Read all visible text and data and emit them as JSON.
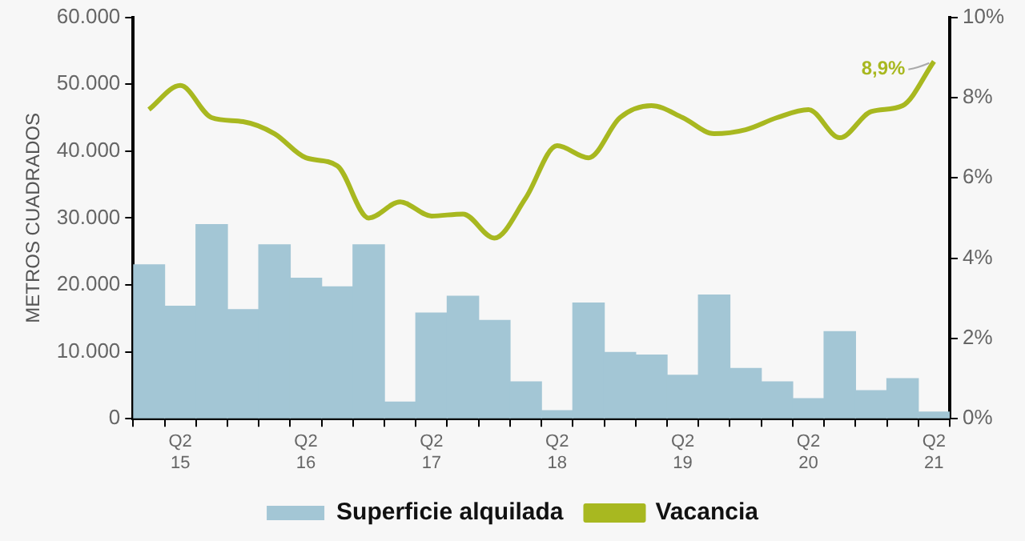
{
  "chart_data": {
    "type": "bar",
    "ylabel": "METROS CUADRADOS",
    "categories": [
      null,
      "Q2\n15",
      null,
      null,
      null,
      "Q2\n16",
      null,
      null,
      null,
      "Q2\n17",
      null,
      null,
      null,
      "Q2\n18",
      null,
      null,
      null,
      "Q2\n19",
      null,
      null,
      null,
      "Q2\n20",
      null,
      null,
      null,
      "Q2\n21"
    ],
    "series": [
      {
        "name": "Superficie alquilada",
        "color": "#a3c6d5",
        "values": [
          23000,
          16800,
          29000,
          16300,
          26000,
          21000,
          19700,
          26000,
          2500,
          15800,
          18300,
          14700,
          5500,
          1200,
          17300,
          9900,
          9500,
          6500,
          18500,
          7500,
          5500,
          3000,
          13000,
          4200,
          6000,
          1000
        ]
      },
      {
        "name": "Vacancia",
        "type": "line",
        "axis": "y2",
        "color": "#a8b820",
        "values": [
          7.7,
          8.3,
          7.5,
          7.4,
          7.1,
          6.5,
          6.3,
          5.0,
          5.4,
          5.05,
          5.1,
          4.5,
          5.5,
          6.8,
          6.5,
          7.5,
          7.8,
          7.5,
          7.1,
          7.2,
          7.5,
          7.7,
          7.0,
          7.65,
          7.8,
          8.9
        ]
      }
    ],
    "ylim": [
      0,
      60000
    ],
    "yticks": [
      {
        "value": 0,
        "label": "0"
      },
      {
        "value": 10000,
        "label": "10.000"
      },
      {
        "value": 20000,
        "label": "20.000"
      },
      {
        "value": 30000,
        "label": "30.000"
      },
      {
        "value": 40000,
        "label": "40.000"
      },
      {
        "value": 50000,
        "label": "50.000"
      },
      {
        "value": 60000,
        "label": "60.000"
      }
    ],
    "y2lim": [
      0,
      10
    ],
    "y2ticks": [
      {
        "value": 0,
        "label": "0%"
      },
      {
        "value": 2,
        "label": "2%"
      },
      {
        "value": 4,
        "label": "4%"
      },
      {
        "value": 6,
        "label": "6%"
      },
      {
        "value": 8,
        "label": "8%"
      },
      {
        "value": 10,
        "label": "10%"
      }
    ],
    "annotations": [
      "8,9%"
    ],
    "grid": false,
    "legend": "bottom",
    "marker": "none",
    "line_style": "solid"
  }
}
